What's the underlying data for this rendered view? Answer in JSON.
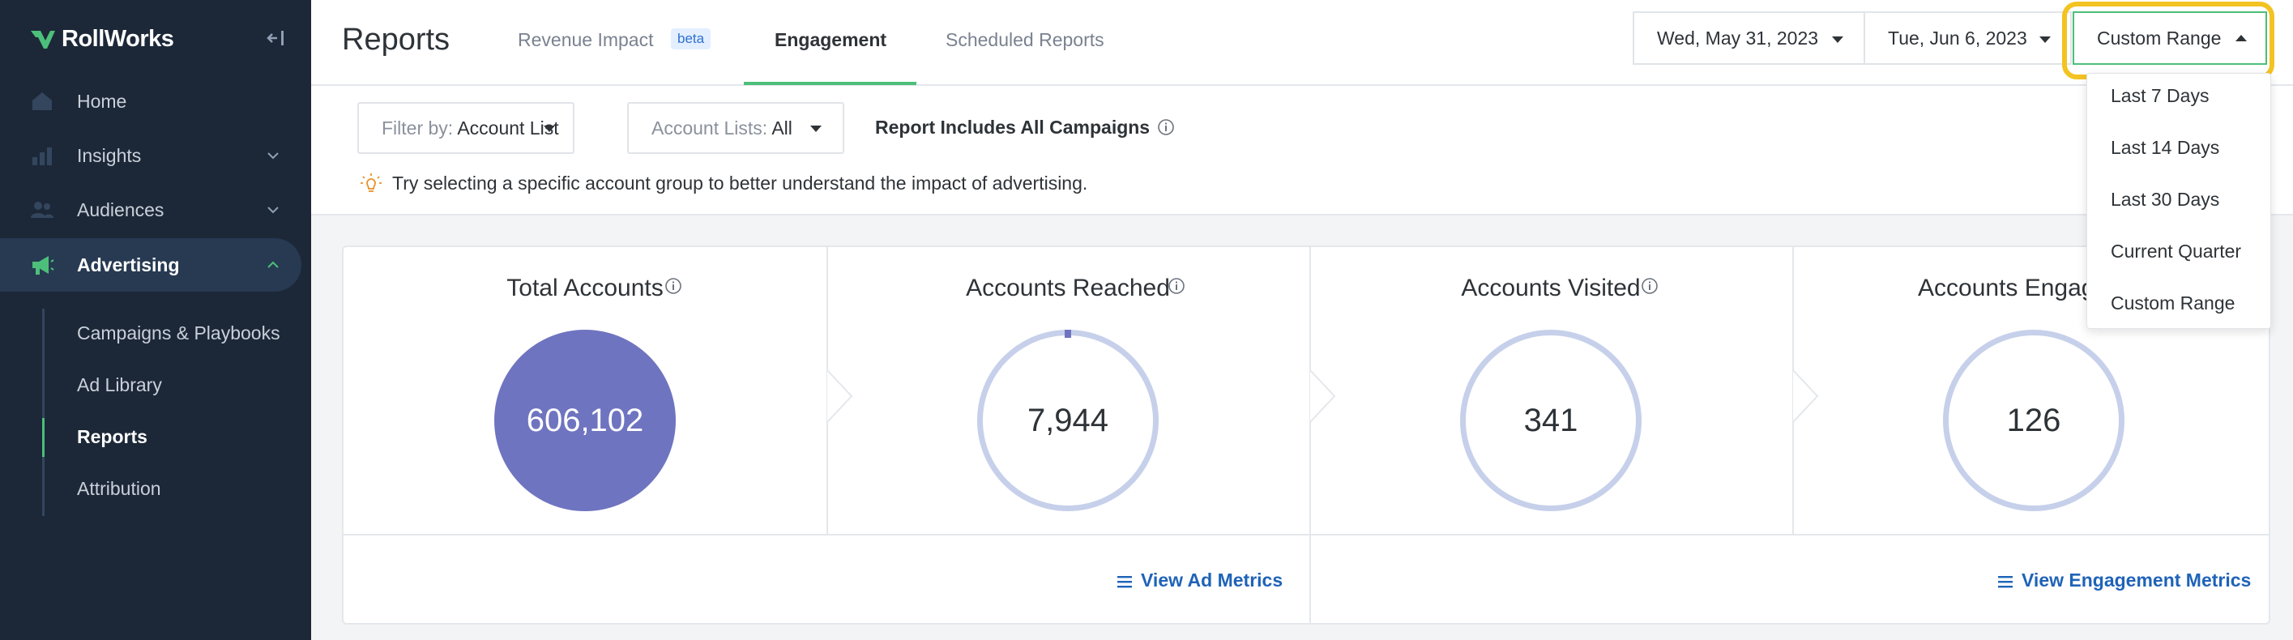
{
  "brand": {
    "name": "RollWorks",
    "accent": "#4cbf7a",
    "sidebar_bg": "#1c2838"
  },
  "sidebar": {
    "items": [
      {
        "label": "Home",
        "icon": "home-icon"
      },
      {
        "label": "Insights",
        "icon": "chart-bars-icon",
        "expandable": true
      },
      {
        "label": "Audiences",
        "icon": "people-icon",
        "expandable": true
      },
      {
        "label": "Advertising",
        "icon": "megaphone-icon",
        "expandable": true,
        "expanded": true
      }
    ],
    "subitems": [
      "Campaigns & Playbooks",
      "Ad Library",
      "Reports",
      "Attribution"
    ],
    "current_subitem": "Reports"
  },
  "header": {
    "title": "Reports",
    "tabs": [
      {
        "label": "Revenue Impact",
        "badge": "beta"
      },
      {
        "label": "Engagement",
        "active": true
      },
      {
        "label": "Scheduled Reports"
      }
    ],
    "start_date": "Wed, May 31, 2023",
    "end_date": "Tue, Jun 6, 2023",
    "range": "Custom Range"
  },
  "filters": {
    "filter_by_label": "Filter by:",
    "filter_by_value": "Account List",
    "account_lists_label": "Account Lists:",
    "account_lists_value": "All",
    "includes": "Report Includes All Campaigns",
    "tip": "Try selecting a specific account group to better understand the impact of advertising."
  },
  "metrics": [
    {
      "title": "Total Accounts",
      "value": "606,102",
      "style": "filled"
    },
    {
      "title": "Accounts Reached",
      "value": "7,944",
      "style": "ring"
    },
    {
      "title": "Accounts Visited",
      "value": "341",
      "style": "ring"
    },
    {
      "title": "Accounts Engag",
      "value": "126",
      "style": "ring"
    }
  ],
  "links": {
    "ad_metrics": "View Ad Metrics",
    "engagement_metrics": "View Engagement Metrics"
  },
  "range_dropdown": {
    "options": [
      "Last 7 Days",
      "Last 14 Days",
      "Last 30 Days",
      "Current Quarter",
      "Custom Range"
    ]
  }
}
